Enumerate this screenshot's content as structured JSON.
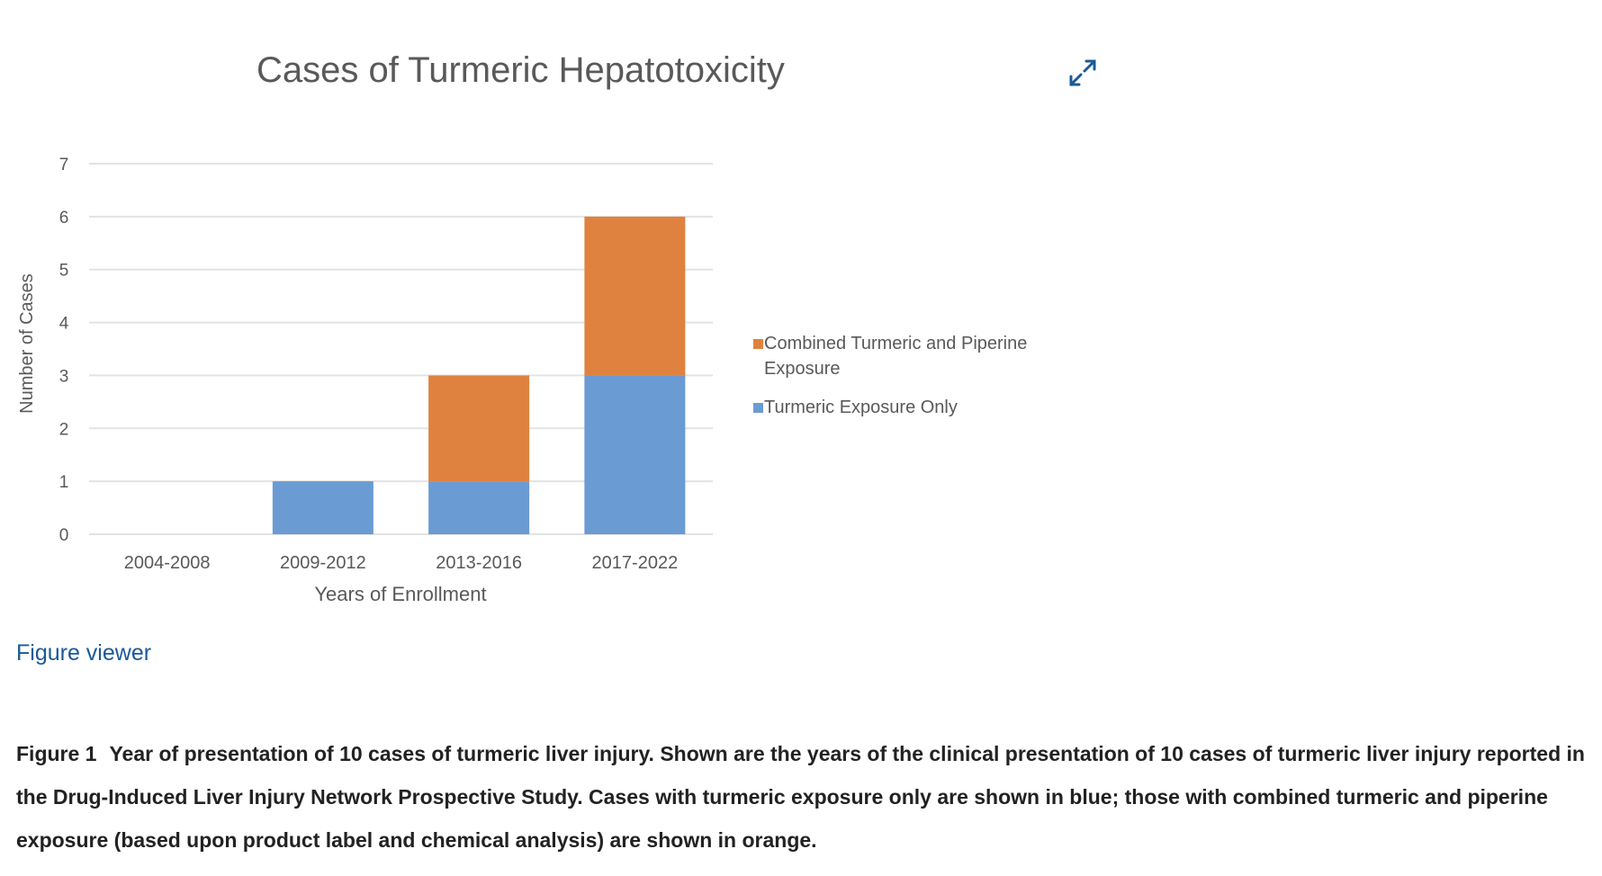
{
  "chart_data": {
    "type": "bar",
    "stacked": true,
    "title": "Cases of Turmeric Hepatotoxicity",
    "xlabel": "Years of Enrollment",
    "ylabel": "Number of Cases",
    "categories": [
      "2004-2008",
      "2009-2012",
      "2013-2016",
      "2017-2022"
    ],
    "series": [
      {
        "name": "Turmeric Exposure Only",
        "values": [
          0,
          1,
          1,
          3
        ],
        "color": "#6a9bd3"
      },
      {
        "name": "Combined Turmeric and Piperine Exposure",
        "values": [
          0,
          0,
          2,
          3
        ],
        "color": "#e0823f"
      }
    ],
    "ylim": [
      0,
      7
    ],
    "yticks": [
      0,
      1,
      2,
      3,
      4,
      5,
      6,
      7
    ],
    "grid": true,
    "legend_placement": "right"
  },
  "legend": {
    "combined_line1": "Combined Turmeric and Piperine",
    "combined_line2": "Exposure",
    "only": "Turmeric Exposure Only"
  },
  "icons": {
    "expand": "expand-icon"
  },
  "figure_viewer_link": "Figure viewer",
  "caption": {
    "label": "Figure 1",
    "text": "Year of presentation of 10 cases of turmeric liver injury. Shown are the years of the clinical presentation of 10 cases of turmeric liver injury reported in the Drug-Induced Liver Injury Network Prospective Study. Cases with turmeric exposure only are shown in blue; those with combined turmeric and piperine exposure (based upon product label and chemical analysis) are shown in orange."
  }
}
